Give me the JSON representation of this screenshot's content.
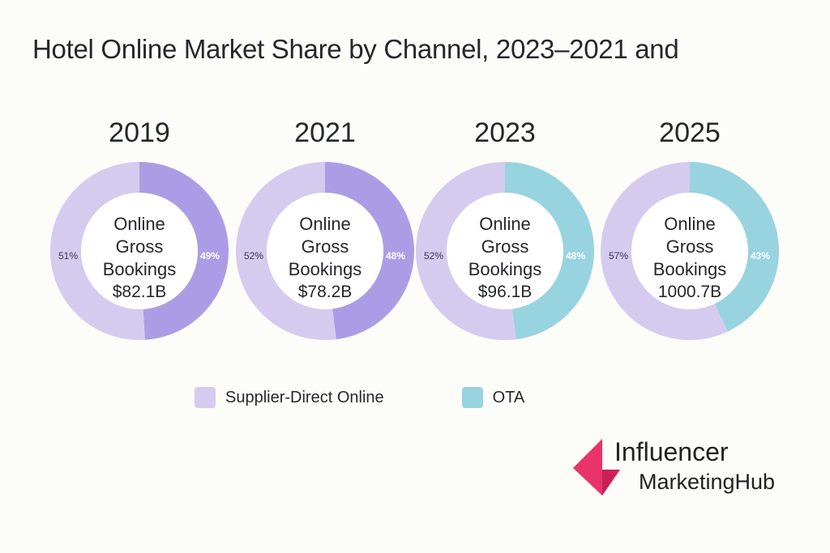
{
  "title": "Hotel Online Market Share by Channel, 2023–2021 and",
  "colors": {
    "supplier_direct": "#d5cbee",
    "ota_purple": "#ab9de5",
    "ota_teal": "#98d3e0",
    "background": "#fcfcf9",
    "logo_pink": "#e8336b"
  },
  "donuts": [
    {
      "year": "2019",
      "center_line1": "Online",
      "center_line2": "Gross",
      "center_line3": "Bookings",
      "value": "$82.1B",
      "left_pct": "51%",
      "right_pct": "49%",
      "right_color": "#ab9de5"
    },
    {
      "year": "2021",
      "center_line1": "Online",
      "center_line2": "Gross",
      "center_line3": "Bookings",
      "value": "$78.2B",
      "left_pct": "52%",
      "right_pct": "48%",
      "right_color": "#ab9de5"
    },
    {
      "year": "2023",
      "center_line1": "Online",
      "center_line2": "Gross",
      "center_line3": "Bookings",
      "value": "$96.1B",
      "left_pct": "52%",
      "right_pct": "48%",
      "right_color": "#98d3e0"
    },
    {
      "year": "2025",
      "center_line1": "Online",
      "center_line2": "Gross",
      "center_line3": "Bookings",
      "value": "1000.7B",
      "left_pct": "57%",
      "right_pct": "43%",
      "right_color": "#98d3e0"
    }
  ],
  "legend": [
    {
      "label": "Supplier-Direct Online",
      "color": "#d5cbee"
    },
    {
      "label": "OTA",
      "color": "#98d3e0"
    }
  ],
  "logo": {
    "line1": "Influencer",
    "line2": "MarketingHub"
  },
  "chart_data": {
    "type": "pie",
    "title": "Hotel Online Market Share by Channel, 2023–2021 and",
    "categories": [
      "2019",
      "2021",
      "2023",
      "2025"
    ],
    "series": [
      {
        "name": "Supplier-Direct Online",
        "values": [
          51,
          52,
          52,
          57
        ]
      },
      {
        "name": "OTA",
        "values": [
          49,
          48,
          48,
          43
        ]
      }
    ],
    "center_labels": [
      "Online Gross Bookings $82.1B",
      "Online Gross Bookings $78.2B",
      "Online Gross Bookings $96.1B",
      "Online Gross Bookings 1000.7B"
    ],
    "legend_position": "bottom",
    "donut": true
  }
}
